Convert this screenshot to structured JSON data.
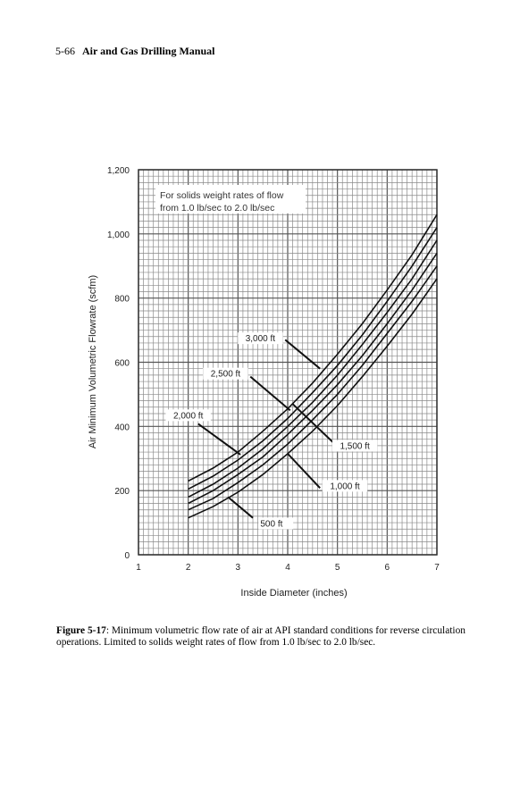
{
  "header": {
    "page_number": "5-66",
    "book_title": "Air and Gas Drilling Manual"
  },
  "chart_data": {
    "type": "line",
    "xlabel": "Inside Diameter (inches)",
    "ylabel": "Air Minimum Volumetric Flowrate (scfm)",
    "xlim": [
      1,
      7
    ],
    "ylim": [
      0,
      1200
    ],
    "x_ticks": [
      "1",
      "2",
      "3",
      "4",
      "5",
      "6",
      "7"
    ],
    "y_ticks": [
      "0",
      "200",
      "400",
      "600",
      "800",
      "1,000",
      "1,200"
    ],
    "grid": true,
    "note_lines": [
      "For solids weight rates of flow",
      "from 1.0 lb/sec to 2.0 lb/sec"
    ],
    "series": [
      {
        "name": "500 ft",
        "x": [
          2,
          2.5,
          3,
          3.5,
          4,
          4.5,
          5,
          5.5,
          6,
          6.5,
          7
        ],
        "y": [
          115,
          150,
          195,
          250,
          315,
          385,
          465,
          555,
          650,
          750,
          860
        ]
      },
      {
        "name": "1,000 ft",
        "x": [
          2,
          2.5,
          3,
          3.5,
          4,
          4.5,
          5,
          5.5,
          6,
          6.5,
          7
        ],
        "y": [
          140,
          175,
          225,
          280,
          345,
          420,
          500,
          590,
          690,
          790,
          900
        ]
      },
      {
        "name": "1,500 ft",
        "x": [
          2,
          2.5,
          3,
          3.5,
          4,
          4.5,
          5,
          5.5,
          6,
          6.5,
          7
        ],
        "y": [
          160,
          200,
          250,
          305,
          375,
          450,
          530,
          620,
          720,
          825,
          940
        ]
      },
      {
        "name": "2,000 ft",
        "x": [
          2,
          2.5,
          3,
          3.5,
          4,
          4.5,
          5,
          5.5,
          6,
          6.5,
          7
        ],
        "y": [
          180,
          220,
          270,
          330,
          400,
          475,
          560,
          655,
          755,
          860,
          980
        ]
      },
      {
        "name": "2,500 ft",
        "x": [
          2,
          2.5,
          3,
          3.5,
          4,
          4.5,
          5,
          5.5,
          6,
          6.5,
          7
        ],
        "y": [
          205,
          245,
          295,
          355,
          425,
          505,
          590,
          685,
          790,
          900,
          1020
        ]
      },
      {
        "name": "3,000 ft",
        "x": [
          2,
          2.5,
          3,
          3.5,
          4,
          4.5,
          5,
          5.5,
          6,
          6.5,
          7
        ],
        "y": [
          230,
          270,
          320,
          385,
          455,
          535,
          625,
          720,
          825,
          935,
          1060
        ]
      }
    ]
  },
  "caption": {
    "label": "Figure 5-17",
    "text": ": Minimum volumetric flow rate of air at API standard conditions for reverse circulation operations. Limited to solids weight rates of flow from 1.0 lb/sec to 2.0 lb/sec."
  }
}
